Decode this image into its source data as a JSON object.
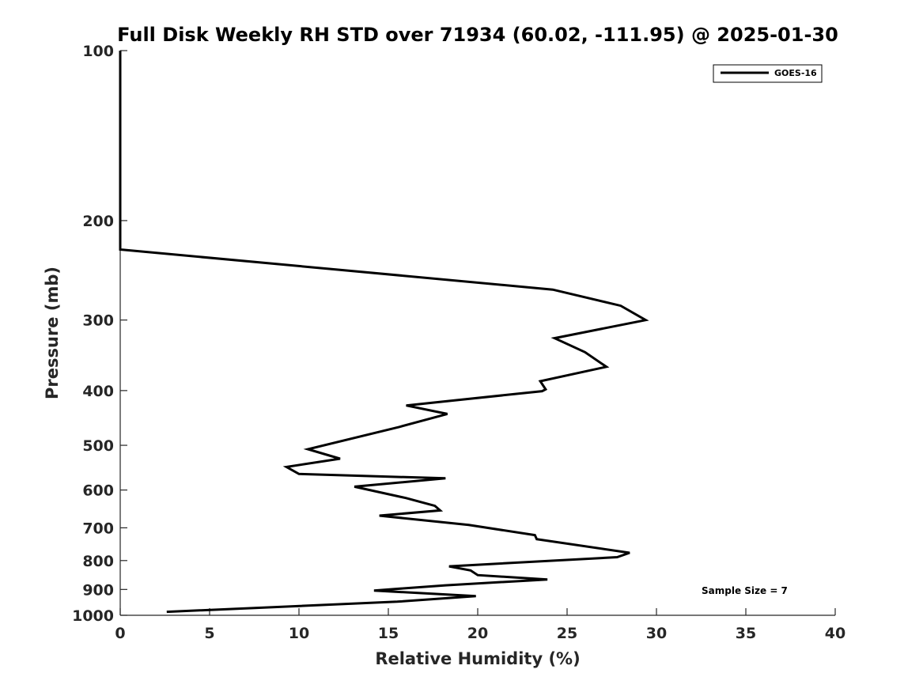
{
  "chart_data": {
    "type": "line",
    "title": "Full Disk Weekly RH STD over 71934 (60.02, -111.95) @ 2025-01-30",
    "xlabel": "Relative Humidity (%)",
    "ylabel": "Pressure (mb)",
    "xlim": [
      0,
      40
    ],
    "ylim": [
      100,
      1000
    ],
    "y_scale": "log",
    "y_reversed": true,
    "x_ticks": [
      0,
      5,
      10,
      15,
      20,
      25,
      30,
      35,
      40
    ],
    "y_ticks": [
      100,
      200,
      300,
      400,
      500,
      600,
      700,
      800,
      900,
      1000
    ],
    "grid": false,
    "legend_position": "top-right",
    "annotation": "Sample Size = 7",
    "series": [
      {
        "name": "GOES-16",
        "color": "#000000",
        "x": [
          0,
          0,
          0,
          0,
          0,
          0,
          12,
          24.2,
          28,
          29.4,
          24.3,
          26,
          27.2,
          23.5,
          23.8,
          23.6,
          16,
          18.3,
          15.6,
          10.5,
          12.3,
          9.3,
          10,
          18.2,
          13.1,
          16,
          17.6,
          17.9,
          14.5,
          19.5,
          23.2,
          23.3,
          28.5,
          27.8,
          18.4,
          19.6,
          20,
          23.9,
          18.2,
          14.2,
          19.9,
          15.5,
          2.6
        ],
        "y": [
          100,
          125,
          150,
          175,
          200,
          225,
          244,
          265,
          283,
          300,
          323,
          342,
          363,
          385,
          398,
          401,
          425,
          440,
          464,
          508,
          528,
          546,
          562,
          572,
          592,
          620,
          640,
          652,
          666,
          692,
          721,
          733,
          775,
          789,
          819,
          833,
          849,
          864,
          885,
          904,
          925,
          946,
          986
        ]
      }
    ]
  }
}
